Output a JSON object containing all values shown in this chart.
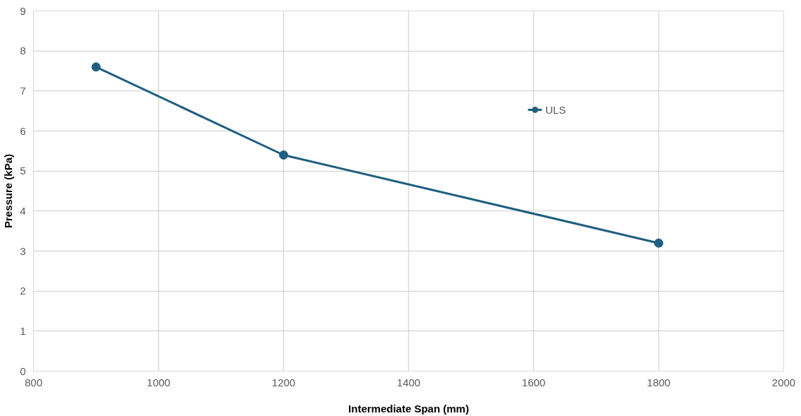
{
  "chart_data": {
    "type": "line",
    "xlabel": "Intermediate Span (mm)",
    "ylabel": "Pressure (kPa)",
    "x": [
      900,
      1200,
      1800
    ],
    "series": [
      {
        "name": "ULS",
        "color": "#1f5f7f",
        "values": [
          7.6,
          5.4,
          3.2
        ]
      }
    ],
    "xlim": [
      800,
      2000
    ],
    "xticks": [
      800,
      1000,
      1200,
      1400,
      1600,
      1800,
      2000
    ],
    "ylim": [
      0,
      9
    ],
    "yticks": [
      0,
      1,
      2,
      3,
      4,
      5,
      6,
      7,
      8,
      9
    ],
    "grid": true,
    "legend": "top right",
    "marker": "circle",
    "line_style": "solid"
  }
}
